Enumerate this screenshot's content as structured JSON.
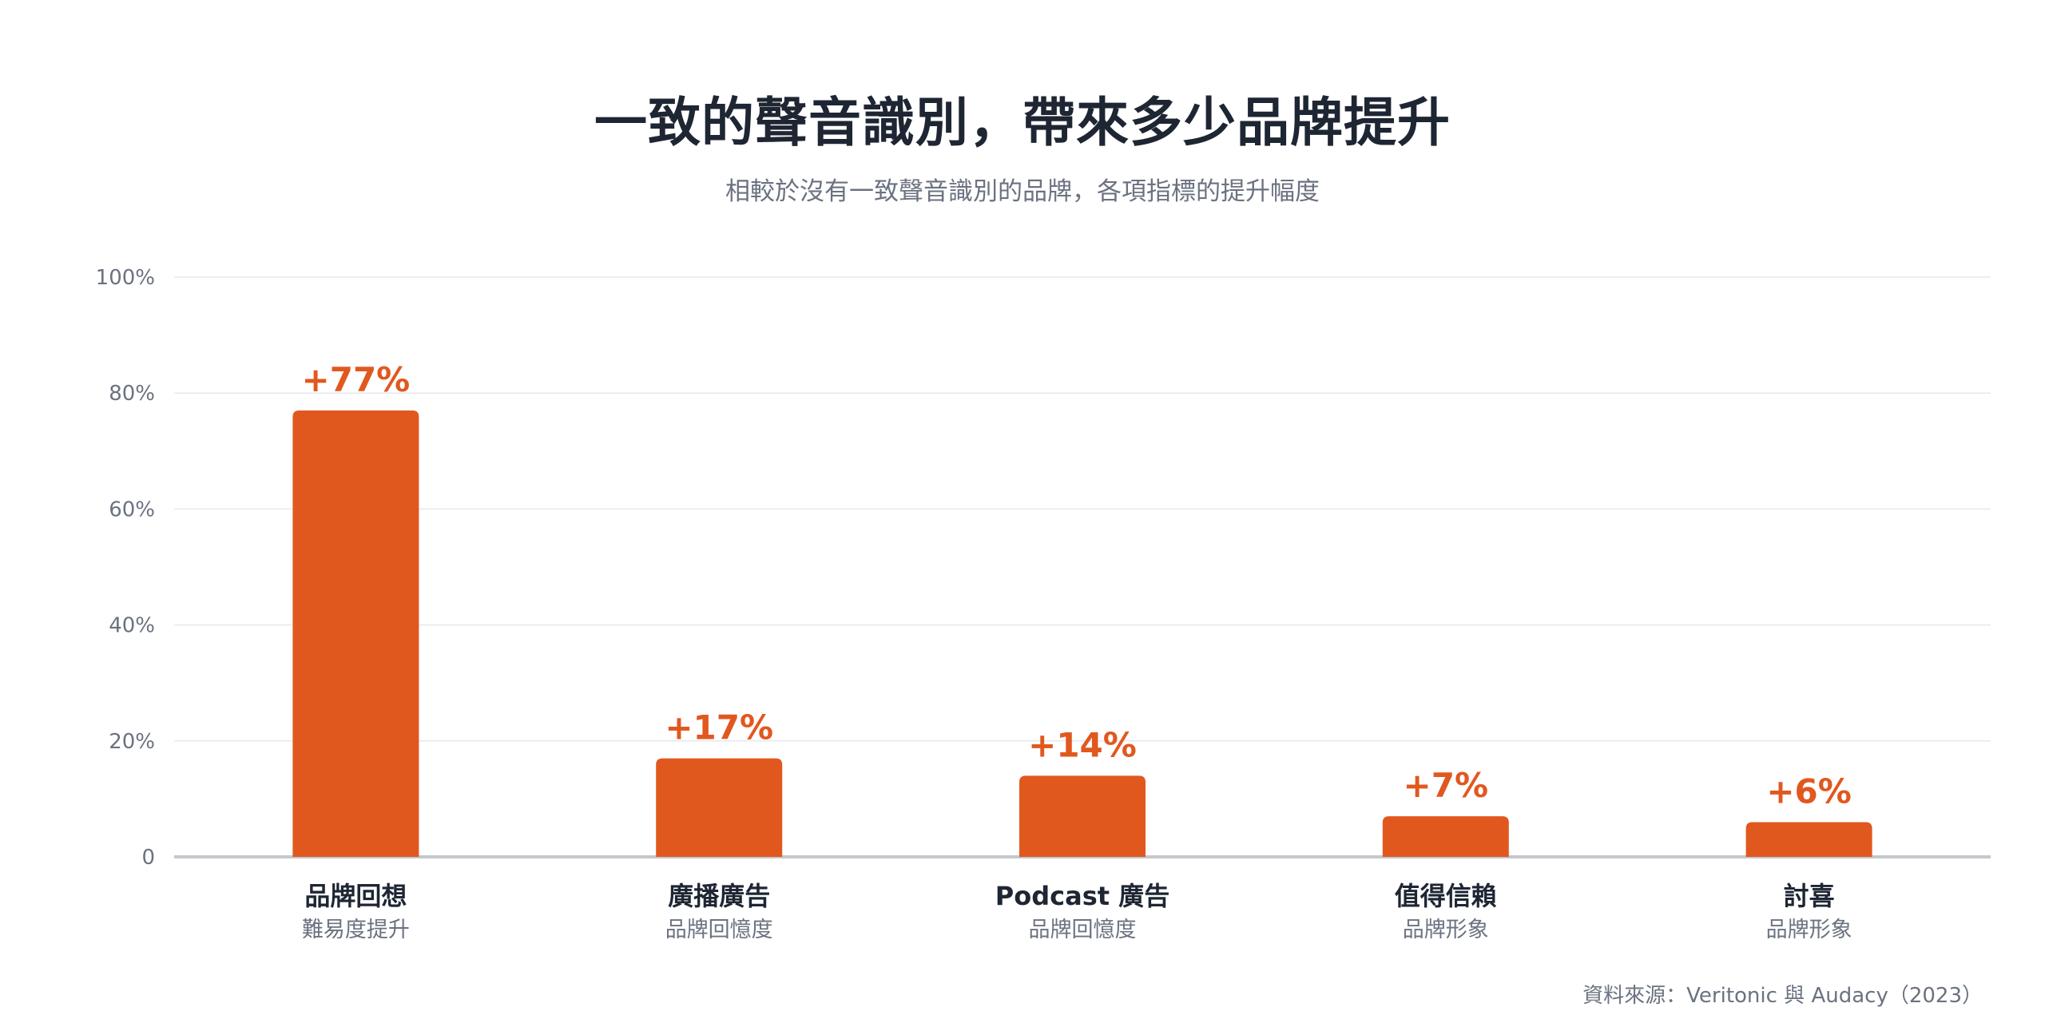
{
  "title": "一致的聲音識別，帶來多少品牌提升",
  "subtitle": "相較於沒有一致聲音識別的品牌，各項指標的提升幅度",
  "source": "資料來源：Veritonic 與 Audacy（2023）",
  "chart_data": {
    "type": "bar",
    "categories": [
      "品牌回想",
      "廣播廣告",
      "Podcast 廣告",
      "值得信賴",
      "討喜"
    ],
    "category_sublabels": [
      "難易度提升",
      "品牌回憶度",
      "品牌回憶度",
      "品牌形象",
      "品牌形象"
    ],
    "values": [
      77,
      17,
      14,
      7,
      6
    ],
    "value_labels": [
      "+77%",
      "+17%",
      "+14%",
      "+7%",
      "+6%"
    ],
    "y_ticks": [
      "0",
      "20%",
      "40%",
      "60%",
      "80%",
      "100%"
    ],
    "y_tick_values": [
      0,
      20,
      40,
      60,
      80,
      100
    ],
    "ylim": [
      0,
      100
    ],
    "grid": true,
    "colors": {
      "bar": "#e1581f",
      "value_label": "#e1581f",
      "grid": "#e6e8eb",
      "axis": "#c4c8cc",
      "tick_label": "#6b7280",
      "category_label": "#1e2633",
      "sublabel": "#6b7280"
    }
  }
}
